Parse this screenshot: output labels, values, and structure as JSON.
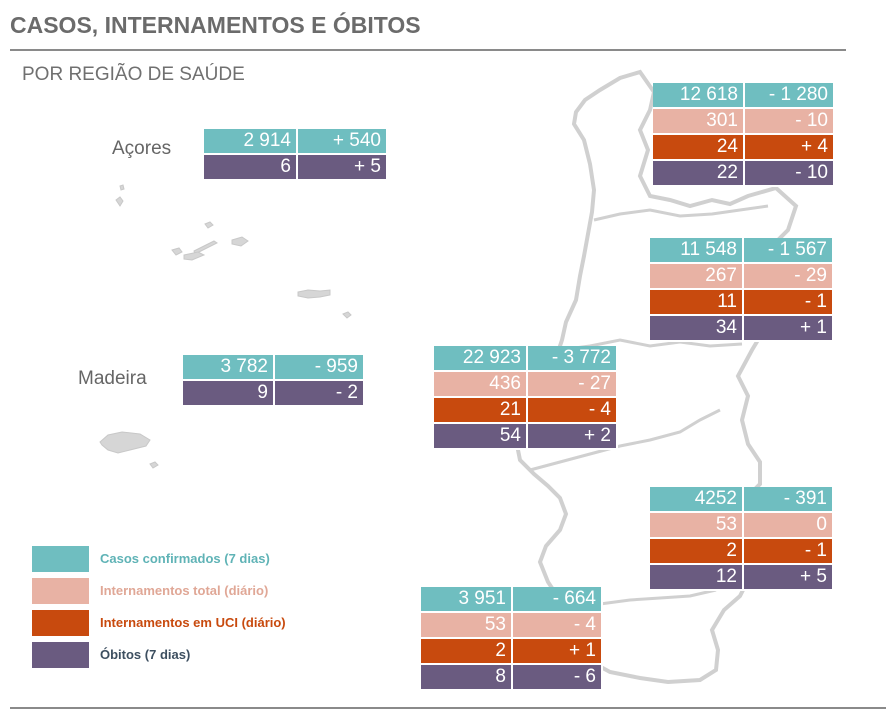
{
  "header": {
    "title": "CASOS, INTERNAMENTOS E ÓBITOS",
    "subtitle": "POR REGIÃO DE SAÚDE"
  },
  "colors": {
    "cases": "#6fbec0",
    "hospitalized": "#e8b2a4",
    "icu": "#c84a0e",
    "deaths": "#6a5b80",
    "map_land": "#d6d6d6"
  },
  "regions": {
    "acores": {
      "label": "Açores",
      "cases": "2 914",
      "cases_change": "+ 540",
      "deaths": "6",
      "deaths_change": "+ 5"
    },
    "madeira": {
      "label": "Madeira",
      "cases": "3 782",
      "cases_change": "- 959",
      "deaths": "9",
      "deaths_change": "- 2"
    },
    "norte": {
      "cases": "12 618",
      "cases_change": "- 1 280",
      "hospitalized": "301",
      "hospitalized_change": "- 10",
      "icu": "24",
      "icu_change": "+ 4",
      "deaths": "22",
      "deaths_change": "- 10"
    },
    "centro": {
      "cases": "11 548",
      "cases_change": "- 1 567",
      "hospitalized": "267",
      "hospitalized_change": "- 29",
      "icu": "11",
      "icu_change": "- 1",
      "deaths": "34",
      "deaths_change": "+ 1"
    },
    "lisboa": {
      "cases": "22 923",
      "cases_change": "- 3 772",
      "hospitalized": "436",
      "hospitalized_change": "- 27",
      "icu": "21",
      "icu_change": "- 4",
      "deaths": "54",
      "deaths_change": "+ 2"
    },
    "alentejo": {
      "cases": "4252",
      "cases_change": "- 391",
      "hospitalized": "53",
      "hospitalized_change": "0",
      "icu": "2",
      "icu_change": "- 1",
      "deaths": "12",
      "deaths_change": "+ 5"
    },
    "algarve": {
      "cases": "3 951",
      "cases_change": "- 664",
      "hospitalized": "53",
      "hospitalized_change": "- 4",
      "icu": "2",
      "icu_change": "+ 1",
      "deaths": "8",
      "deaths_change": "- 6"
    }
  },
  "legend": {
    "cases": "Casos confirmados (7 dias)",
    "hospitalized": "Internamentos total (diário)",
    "icu": "Internamentos em UCI (diário)",
    "deaths": "Óbitos (7 dias)"
  }
}
